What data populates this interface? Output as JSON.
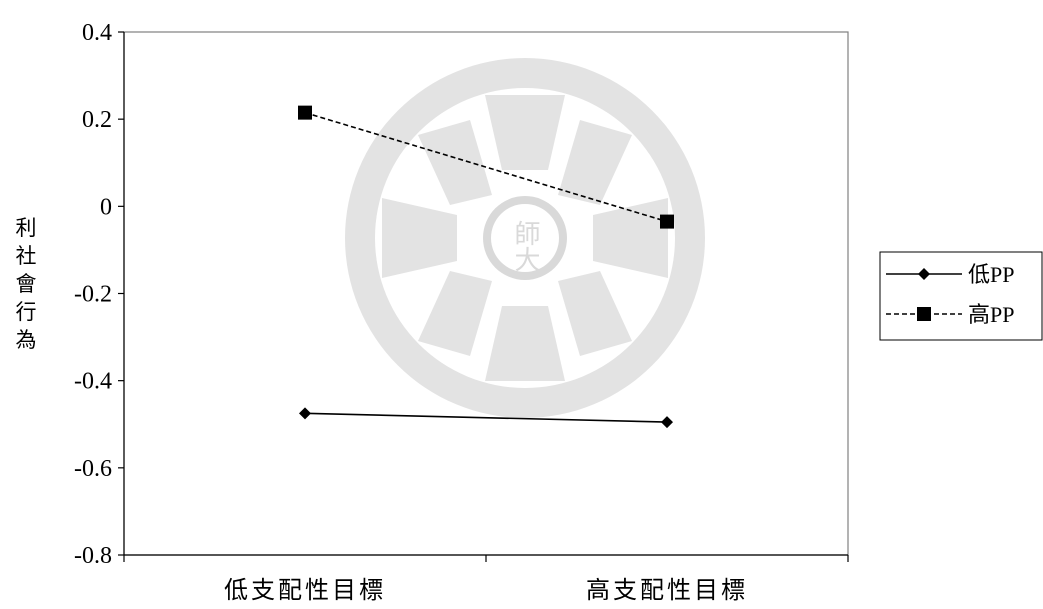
{
  "chart_data": {
    "type": "line",
    "title": "",
    "xlabel": "",
    "ylabel": "利社會行為",
    "categories": [
      "低支配性目標",
      "高支配性目標"
    ],
    "ylim": [
      -0.8,
      0.4
    ],
    "yticks": [
      "0.4",
      "0.2",
      "0",
      "-0.2",
      "-0.4",
      "-0.6",
      "-0.8"
    ],
    "grid": false,
    "legend_position": "right",
    "series": [
      {
        "name": "低PP",
        "values": [
          -0.475,
          -0.495
        ],
        "line_style": "solid",
        "marker": "diamond",
        "color": "#000000"
      },
      {
        "name": "高PP",
        "values": [
          0.215,
          -0.035
        ],
        "line_style": "dashed",
        "marker": "square",
        "color": "#000000"
      }
    ]
  },
  "watermark": {
    "text": "師大",
    "color": "#d9d9d9"
  }
}
